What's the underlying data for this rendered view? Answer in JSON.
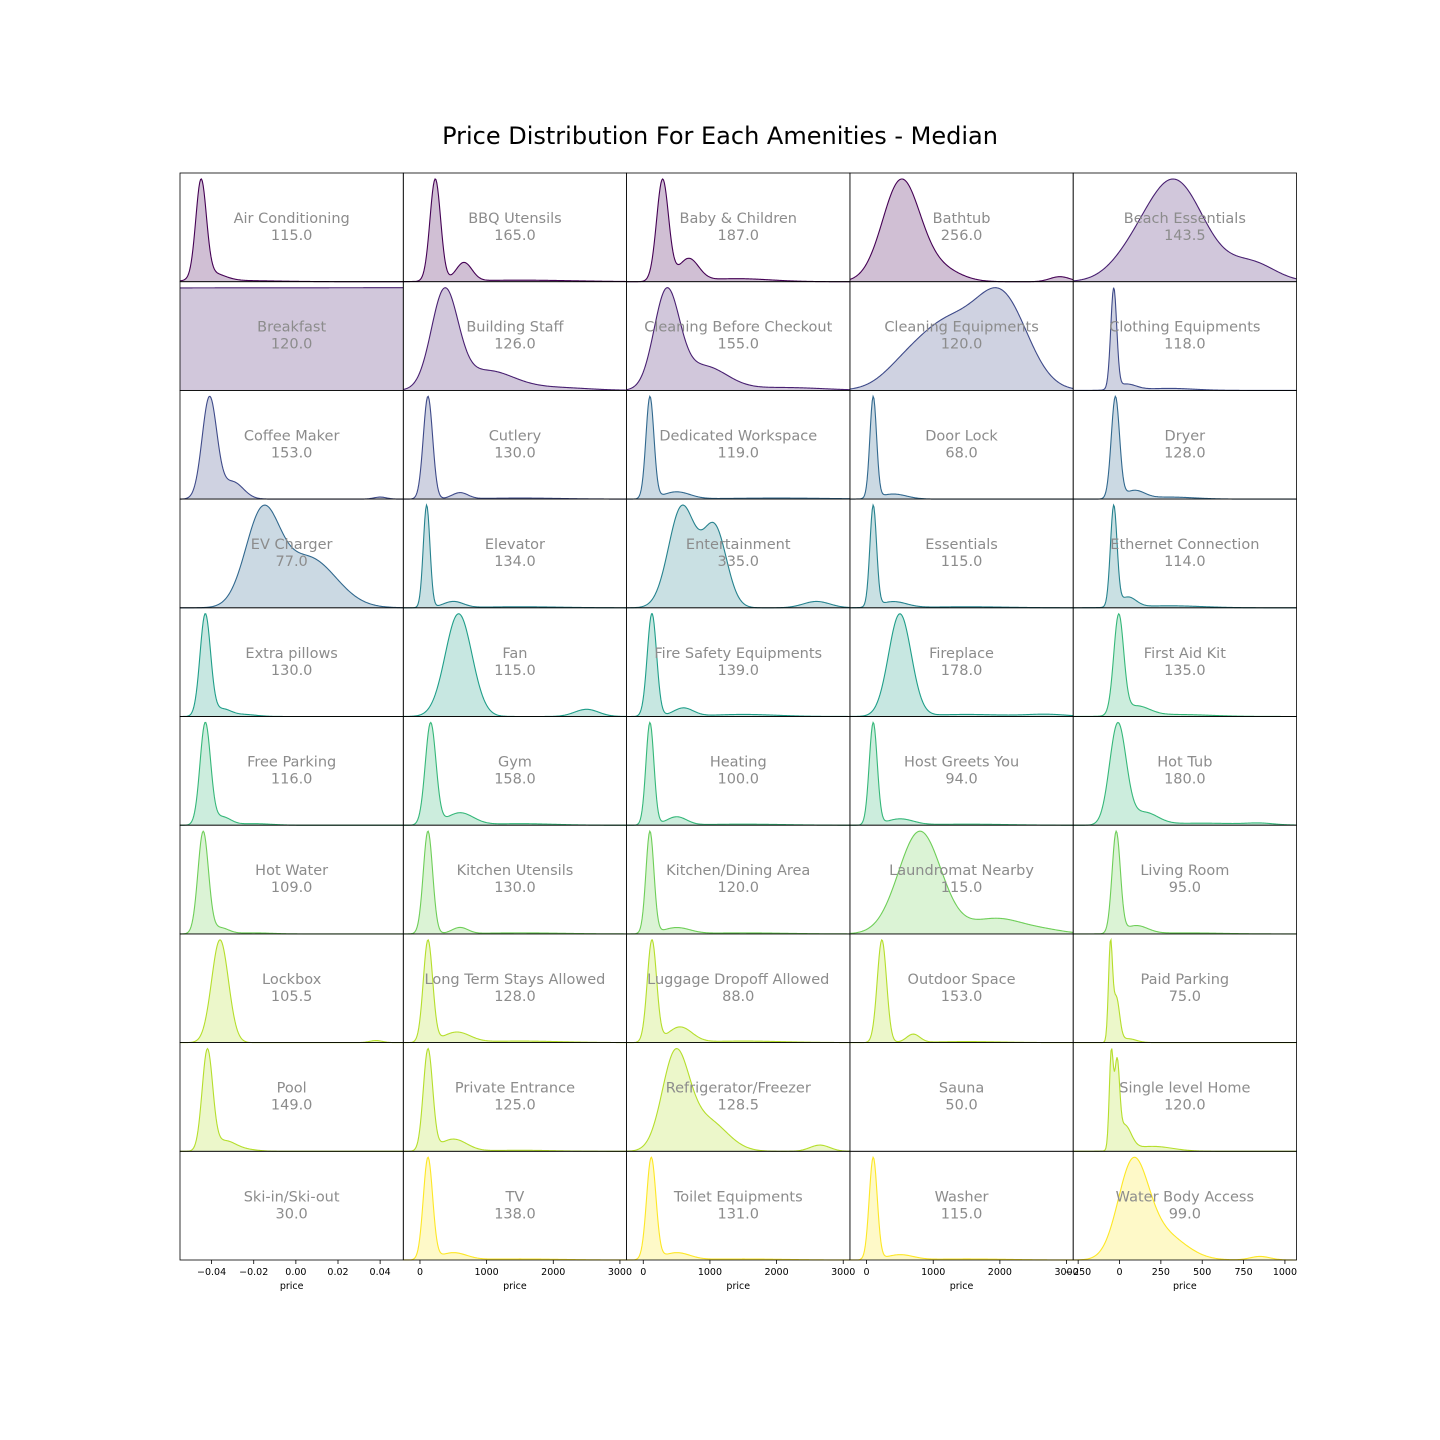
{
  "chart_data": {
    "type": "area",
    "title": "Price Distribution For Each Amenities - Median",
    "xlabel": "price",
    "grid": false,
    "layout": "facet grid, 10 rows x 5 columns, shared x-axis per column",
    "colormap": "viridis",
    "column_axes": [
      {
        "ticks": [
          -0.04,
          -0.02,
          0.0,
          0.02,
          0.04
        ],
        "tick_labels": [
          "−0.04",
          "−0.02",
          "0.00",
          "0.02",
          "0.04"
        ],
        "xlim": [
          -0.055,
          0.051
        ]
      },
      {
        "ticks": [
          0,
          1000,
          2000,
          3000
        ],
        "tick_labels": [
          "0",
          "1000",
          "2000",
          "3000"
        ],
        "xlim": [
          -250,
          3100
        ]
      },
      {
        "ticks": [
          0,
          1000,
          2000,
          3000
        ],
        "tick_labels": [
          "0",
          "1000",
          "2000",
          "3000"
        ],
        "xlim": [
          -250,
          3100
        ]
      },
      {
        "ticks": [
          0,
          1000,
          2000,
          3000
        ],
        "tick_labels": [
          "0",
          "1000",
          "2000",
          "3000"
        ],
        "xlim": [
          -250,
          3100
        ]
      },
      {
        "ticks": [
          -250,
          0,
          250,
          500,
          750,
          1000
        ],
        "tick_labels": [
          "−250",
          "0",
          "250",
          "500",
          "750",
          "1000"
        ],
        "xlim": [
          -280,
          1070
        ]
      }
    ],
    "panels": [
      {
        "name": "Air Conditioning",
        "median": "115.0",
        "color": "#440154",
        "peaks": [
          [
            -0.045,
            0.0025,
            1.0
          ],
          [
            -0.04,
            0.006,
            0.08
          ],
          [
            -0.03,
            0.02,
            0.012
          ]
        ]
      },
      {
        "name": "BBQ Utensils",
        "median": "165.0",
        "color": "#440154",
        "peaks": [
          [
            230,
            80,
            1.0
          ],
          [
            660,
            120,
            0.18
          ],
          [
            1500,
            800,
            0.015
          ]
        ]
      },
      {
        "name": "Baby & Children",
        "median": "187.0",
        "color": "#440154",
        "peaks": [
          [
            290,
            90,
            1.0
          ],
          [
            680,
            150,
            0.22
          ],
          [
            1400,
            500,
            0.03
          ]
        ]
      },
      {
        "name": "Bathtub",
        "median": "256.0",
        "color": "#440154",
        "peaks": [
          [
            520,
            280,
            1.0
          ],
          [
            1100,
            300,
            0.12
          ],
          [
            2900,
            150,
            0.05
          ]
        ]
      },
      {
        "name": "Beach Essentials",
        "median": "143.5",
        "color": "#482071",
        "peaks": [
          [
            330,
            180,
            1.0
          ],
          [
            800,
            140,
            0.18
          ],
          [
            50,
            130,
            0.12
          ]
        ]
      },
      {
        "name": "Breakfast",
        "median": "120.0",
        "color": "#482071",
        "peaks": [
          [
            180,
            100,
            1.0
          ],
          [
            600,
            150,
            0.25
          ],
          [
            1200,
            400,
            0.03
          ]
        ]
      },
      {
        "name": "Building Staff",
        "median": "126.0",
        "color": "#482071",
        "peaks": [
          [
            370,
            200,
            1.0
          ],
          [
            1000,
            400,
            0.2
          ],
          [
            2000,
            500,
            0.03
          ]
        ]
      },
      {
        "name": "Cleaning Before Checkout",
        "median": "155.0",
        "color": "#482071",
        "peaks": [
          [
            350,
            190,
            1.0
          ],
          [
            900,
            350,
            0.25
          ],
          [
            2100,
            600,
            0.03
          ]
        ]
      },
      {
        "name": "Cleaning Equipments",
        "median": "120.0",
        "color": "#3e4a89",
        "peaks": [
          [
            1200,
            500,
            0.75
          ],
          [
            2050,
            380,
            0.95
          ],
          [
            500,
            300,
            0.1
          ]
        ]
      },
      {
        "name": "Clothing Equipments",
        "median": "118.0",
        "color": "#3e4a89",
        "peaks": [
          [
            -35,
            18,
            1.0
          ],
          [
            40,
            60,
            0.06
          ],
          [
            300,
            150,
            0.02
          ]
        ]
      },
      {
        "name": "Coffee Maker",
        "median": "153.0",
        "color": "#3e4a89",
        "peaks": [
          [
            -0.041,
            0.0035,
            1.0
          ],
          [
            -0.03,
            0.005,
            0.17
          ],
          [
            0.04,
            0.003,
            0.02
          ]
        ]
      },
      {
        "name": "Cutlery",
        "median": "130.0",
        "color": "#3e4a89",
        "peaks": [
          [
            120,
            70,
            1.0
          ],
          [
            600,
            120,
            0.06
          ],
          [
            1500,
            600,
            0.01
          ]
        ]
      },
      {
        "name": "Dedicated Workspace",
        "median": "119.0",
        "color": "#31688e",
        "peaks": [
          [
            100,
            60,
            1.0
          ],
          [
            500,
            200,
            0.07
          ],
          [
            2000,
            800,
            0.01
          ]
        ]
      },
      {
        "name": "Door Lock",
        "median": "68.0",
        "color": "#31688e",
        "peaks": [
          [
            100,
            50,
            1.0
          ],
          [
            400,
            200,
            0.05
          ]
        ]
      },
      {
        "name": "Dryer",
        "median": "128.0",
        "color": "#31688e",
        "peaks": [
          [
            -25,
            25,
            1.0
          ],
          [
            90,
            60,
            0.08
          ],
          [
            300,
            150,
            0.02
          ]
        ]
      },
      {
        "name": "EV Charger",
        "median": "77.0",
        "color": "#31688e",
        "peaks": [
          [
            -0.016,
            0.008,
            0.9
          ],
          [
            0.006,
            0.013,
            0.5
          ]
        ]
      },
      {
        "name": "Elevator",
        "median": "134.0",
        "color": "#26828e",
        "peaks": [
          [
            100,
            50,
            1.0
          ],
          [
            500,
            150,
            0.06
          ],
          [
            1500,
            600,
            0.01
          ]
        ]
      },
      {
        "name": "Entertainment",
        "median": "335.0",
        "color": "#26828e",
        "peaks": [
          [
            580,
            200,
            0.95
          ],
          [
            1070,
            180,
            0.75
          ],
          [
            2600,
            200,
            0.06
          ]
        ]
      },
      {
        "name": "Essentials",
        "median": "115.0",
        "color": "#26828e",
        "peaks": [
          [
            100,
            50,
            1.0
          ],
          [
            400,
            200,
            0.06
          ],
          [
            1500,
            600,
            0.01
          ]
        ]
      },
      {
        "name": "Ethernet Connection",
        "median": "114.0",
        "color": "#26828e",
        "peaks": [
          [
            -35,
            20,
            1.0
          ],
          [
            50,
            50,
            0.1
          ],
          [
            300,
            200,
            0.02
          ]
        ]
      },
      {
        "name": "Extra pillows",
        "median": "130.0",
        "color": "#1f9e89",
        "peaks": [
          [
            -0.043,
            0.0025,
            1.0
          ],
          [
            -0.035,
            0.004,
            0.07
          ],
          [
            -0.025,
            0.006,
            0.02
          ]
        ]
      },
      {
        "name": "Fan",
        "median": "115.0",
        "color": "#1f9e89",
        "peaks": [
          [
            580,
            200,
            1.0
          ],
          [
            2500,
            180,
            0.07
          ]
        ]
      },
      {
        "name": "Fire Safety Equipments",
        "median": "139.0",
        "color": "#1f9e89",
        "peaks": [
          [
            130,
            70,
            1.0
          ],
          [
            600,
            150,
            0.08
          ],
          [
            1500,
            500,
            0.02
          ]
        ]
      },
      {
        "name": "Fireplace",
        "median": "178.0",
        "color": "#1f9e89",
        "peaks": [
          [
            500,
            170,
            1.0
          ],
          [
            1500,
            600,
            0.02
          ],
          [
            2700,
            300,
            0.02
          ]
        ]
      },
      {
        "name": "First Aid Kit",
        "median": "135.0",
        "color": "#35b779",
        "peaks": [
          [
            -5,
            30,
            1.0
          ],
          [
            100,
            80,
            0.1
          ],
          [
            350,
            200,
            0.02
          ]
        ]
      },
      {
        "name": "Free Parking",
        "median": "116.0",
        "color": "#35b779",
        "peaks": [
          [
            -0.043,
            0.0025,
            1.0
          ],
          [
            -0.035,
            0.004,
            0.08
          ],
          [
            -0.02,
            0.008,
            0.015
          ]
        ]
      },
      {
        "name": "Gym",
        "median": "158.0",
        "color": "#35b779",
        "peaks": [
          [
            160,
            80,
            1.0
          ],
          [
            600,
            200,
            0.12
          ],
          [
            1500,
            500,
            0.015
          ]
        ]
      },
      {
        "name": "Heating",
        "median": "100.0",
        "color": "#35b779",
        "peaks": [
          [
            100,
            60,
            1.0
          ],
          [
            500,
            150,
            0.08
          ],
          [
            1500,
            600,
            0.01
          ]
        ]
      },
      {
        "name": "Host Greets You",
        "median": "94.0",
        "color": "#35b779",
        "peaks": [
          [
            100,
            60,
            1.0
          ],
          [
            500,
            200,
            0.06
          ],
          [
            1500,
            600,
            0.01
          ]
        ]
      },
      {
        "name": "Hot Tub",
        "median": "180.0",
        "color": "#35b779",
        "peaks": [
          [
            -10,
            50,
            1.0
          ],
          [
            150,
            80,
            0.12
          ],
          [
            500,
            250,
            0.02
          ],
          [
            850,
            80,
            0.015
          ]
        ]
      },
      {
        "name": "Hot Water",
        "median": "109.0",
        "color": "#6ece58",
        "peaks": [
          [
            -0.044,
            0.0025,
            1.0
          ],
          [
            -0.036,
            0.004,
            0.06
          ],
          [
            -0.02,
            0.008,
            0.01
          ]
        ]
      },
      {
        "name": "Kitchen Utensils",
        "median": "130.0",
        "color": "#6ece58",
        "peaks": [
          [
            120,
            70,
            1.0
          ],
          [
            600,
            120,
            0.06
          ],
          [
            1500,
            600,
            0.01
          ]
        ]
      },
      {
        "name": "Kitchen/Dining Area",
        "median": "120.0",
        "color": "#6ece58",
        "peaks": [
          [
            100,
            60,
            1.0
          ],
          [
            500,
            200,
            0.06
          ],
          [
            1500,
            600,
            0.01
          ]
        ]
      },
      {
        "name": "Laundromat Nearby",
        "median": "115.0",
        "color": "#6ece58",
        "peaks": [
          [
            800,
            320,
            1.0
          ],
          [
            1950,
            400,
            0.15
          ],
          [
            2700,
            300,
            0.03
          ]
        ]
      },
      {
        "name": "Living Room",
        "median": "95.0",
        "color": "#6ece58",
        "peaks": [
          [
            -20,
            25,
            1.0
          ],
          [
            100,
            70,
            0.08
          ],
          [
            400,
            200,
            0.01
          ]
        ]
      },
      {
        "name": "Lockbox",
        "median": "105.5",
        "color": "#b5de2b",
        "peaks": [
          [
            -0.036,
            0.004,
            1.0
          ],
          [
            0.038,
            0.003,
            0.02
          ]
        ]
      },
      {
        "name": "Long Term Stays Allowed",
        "median": "128.0",
        "color": "#b5de2b",
        "peaks": [
          [
            120,
            70,
            1.0
          ],
          [
            550,
            200,
            0.1
          ],
          [
            1500,
            600,
            0.015
          ]
        ]
      },
      {
        "name": "Luggage Dropoff Allowed",
        "median": "88.0",
        "color": "#b5de2b",
        "peaks": [
          [
            130,
            70,
            1.0
          ],
          [
            550,
            180,
            0.15
          ],
          [
            1500,
            600,
            0.015
          ]
        ]
      },
      {
        "name": "Outdoor Space",
        "median": "153.0",
        "color": "#b5de2b",
        "peaks": [
          [
            230,
            70,
            1.0
          ],
          [
            700,
            100,
            0.08
          ],
          [
            1500,
            500,
            0.01
          ]
        ]
      },
      {
        "name": "Paid Parking",
        "median": "75.0",
        "color": "#b5de2b",
        "peaks": [
          [
            -55,
            12,
            0.95
          ],
          [
            -20,
            20,
            0.45
          ],
          [
            50,
            50,
            0.04
          ]
        ]
      },
      {
        "name": "Pool",
        "median": "149.0",
        "color": "#b5de2b",
        "peaks": [
          [
            -0.042,
            0.0025,
            1.0
          ],
          [
            -0.034,
            0.005,
            0.1
          ],
          [
            -0.025,
            0.006,
            0.02
          ]
        ]
      },
      {
        "name": "Private Entrance",
        "median": "125.0",
        "color": "#b5de2b",
        "peaks": [
          [
            120,
            70,
            1.0
          ],
          [
            500,
            200,
            0.12
          ],
          [
            1500,
            500,
            0.01
          ]
        ]
      },
      {
        "name": "Refrigerator/Freezer",
        "median": "128.5",
        "color": "#b5de2b",
        "peaks": [
          [
            480,
            200,
            0.9
          ],
          [
            950,
            300,
            0.3
          ],
          [
            2650,
            150,
            0.06
          ]
        ]
      },
      {
        "name": "Sauna",
        "median": "50.0",
        "color": "#b5de2b",
        "peaks": []
      },
      {
        "name": "Single level Home",
        "median": "120.0",
        "color": "#b5de2b",
        "peaks": [
          [
            -50,
            12,
            0.95
          ],
          [
            -15,
            15,
            0.8
          ],
          [
            30,
            40,
            0.25
          ],
          [
            200,
            120,
            0.05
          ]
        ]
      },
      {
        "name": "Ski-in/Ski-out",
        "median": "30.0",
        "color": "#fde725",
        "peaks": []
      },
      {
        "name": "TV",
        "median": "138.0",
        "color": "#fde725",
        "peaks": [
          [
            120,
            70,
            1.0
          ],
          [
            500,
            200,
            0.07
          ],
          [
            1500,
            600,
            0.01
          ]
        ]
      },
      {
        "name": "Toilet Equipments",
        "median": "131.0",
        "color": "#fde725",
        "peaks": [
          [
            120,
            70,
            1.0
          ],
          [
            500,
            200,
            0.07
          ],
          [
            1500,
            600,
            0.01
          ]
        ]
      },
      {
        "name": "Washer",
        "median": "115.0",
        "color": "#fde725",
        "peaks": [
          [
            100,
            60,
            1.0
          ],
          [
            500,
            200,
            0.05
          ],
          [
            1500,
            600,
            0.01
          ]
        ]
      },
      {
        "name": "Water Body Access",
        "median": "99.0",
        "color": "#fde725",
        "peaks": [
          [
            80,
            90,
            1.0
          ],
          [
            250,
            140,
            0.3
          ],
          [
            850,
            60,
            0.04
          ]
        ]
      }
    ]
  }
}
